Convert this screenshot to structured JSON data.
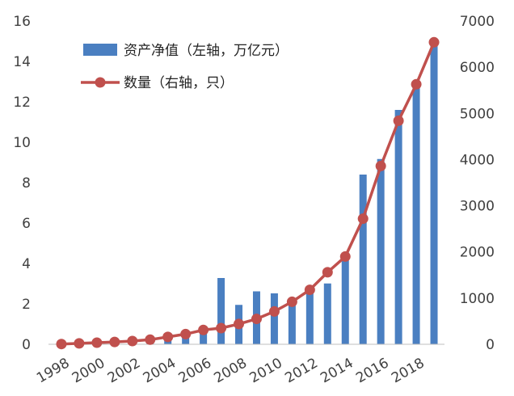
{
  "chart_data": {
    "type": "bar",
    "categories": [
      "1998",
      "1999",
      "2000",
      "2001",
      "2002",
      "2003",
      "2004",
      "2005",
      "2006",
      "2007",
      "2008",
      "2009",
      "2010",
      "2011",
      "2012",
      "2013",
      "2014",
      "2015",
      "2016",
      "2017",
      "2018",
      "2019"
    ],
    "x_tick_labels": [
      "1998",
      "2000",
      "2002",
      "2004",
      "2006",
      "2008",
      "2010",
      "2012",
      "2014",
      "2016",
      "2018"
    ],
    "series": [
      {
        "name": "资产净值（左轴，万亿元）",
        "type": "bar",
        "axis": "left",
        "color": "#4a7fc1",
        "values": [
          0.01,
          0.02,
          0.05,
          0.08,
          0.13,
          0.16,
          0.32,
          0.46,
          0.86,
          3.28,
          1.95,
          2.62,
          2.52,
          2.19,
          2.87,
          3.01,
          4.54,
          8.4,
          9.17,
          11.6,
          13.0,
          14.77
        ]
      },
      {
        "name": "数量（右轴，只）",
        "type": "line",
        "axis": "right",
        "color": "#c0504d",
        "values": [
          5,
          20,
          35,
          50,
          70,
          100,
          160,
          220,
          310,
          350,
          440,
          550,
          710,
          920,
          1180,
          1560,
          1900,
          2720,
          3860,
          4840,
          5630,
          6540
        ]
      }
    ],
    "left_axis": {
      "ylim": [
        0,
        16
      ],
      "ticks": [
        "0",
        "2",
        "4",
        "6",
        "8",
        "10",
        "12",
        "14",
        "16"
      ]
    },
    "right_axis": {
      "ylim": [
        0,
        7000
      ],
      "ticks": [
        "0",
        "1000",
        "2000",
        "3000",
        "4000",
        "5000",
        "6000",
        "7000"
      ]
    },
    "grid": false,
    "legend_placement": "top-left"
  }
}
